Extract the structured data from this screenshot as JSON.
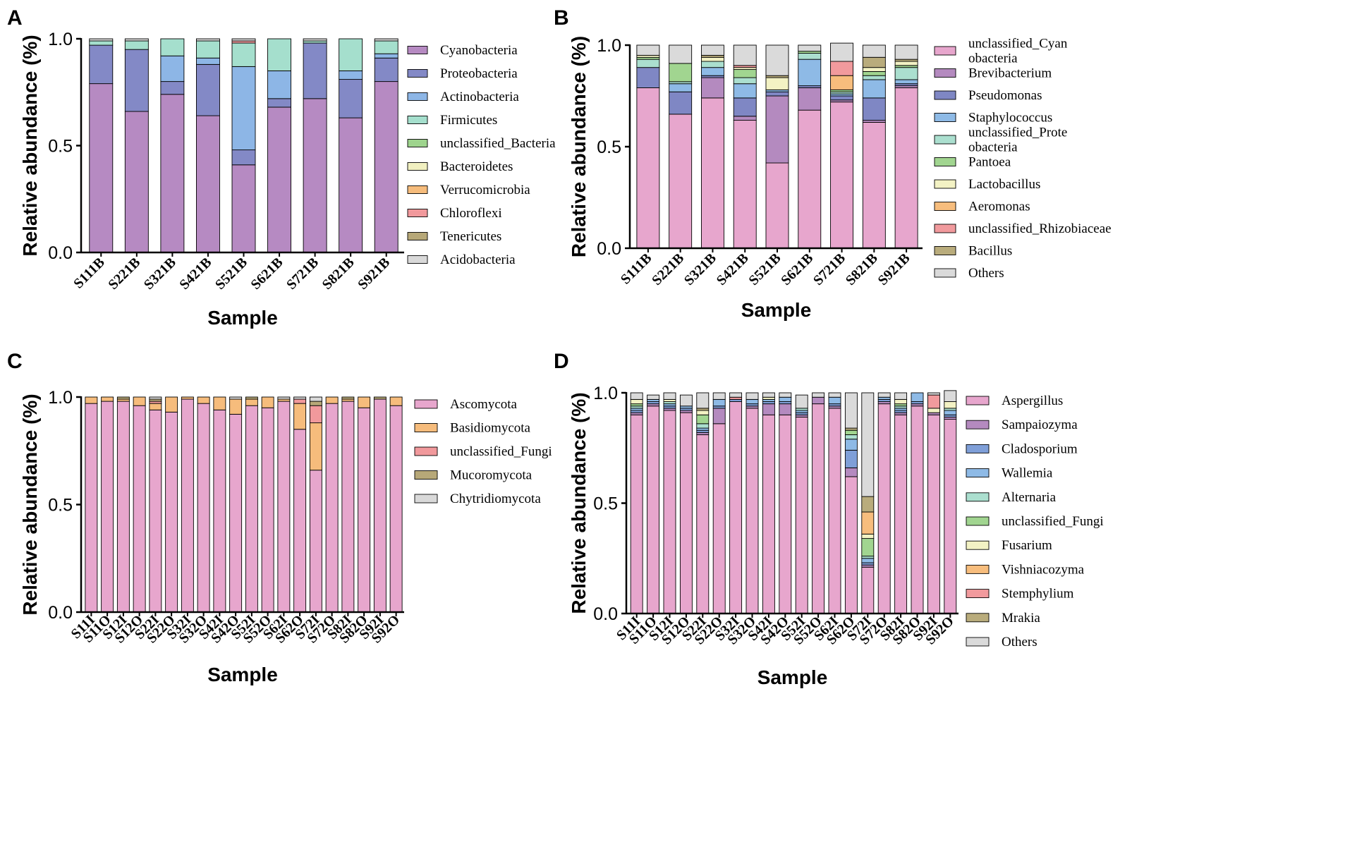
{
  "chart_data": [
    {
      "panel": "A",
      "type": "bar",
      "stacked": true,
      "xlabel": "Sample",
      "ylabel": "Relative abundance (%)",
      "ylim": [
        0,
        1
      ],
      "yticks": [
        "0.0",
        "0.5",
        "1.0"
      ],
      "categories": [
        "S111B",
        "S221B",
        "S321B",
        "S421B",
        "S521B",
        "S621B",
        "S721B",
        "S821B",
        "S921B"
      ],
      "series": [
        {
          "name": "Cyanobacteria",
          "color": "#b68ac2",
          "values": [
            0.79,
            0.66,
            0.74,
            0.64,
            0.41,
            0.68,
            0.72,
            0.63,
            0.8
          ]
        },
        {
          "name": "Proteobacteria",
          "color": "#8389c6",
          "values": [
            0.18,
            0.29,
            0.06,
            0.24,
            0.07,
            0.04,
            0.26,
            0.18,
            0.11
          ]
        },
        {
          "name": "Actinobacteria",
          "color": "#8db6e6",
          "values": [
            0.0,
            0.0,
            0.12,
            0.03,
            0.39,
            0.13,
            0.0,
            0.04,
            0.02
          ]
        },
        {
          "name": "Firmicutes",
          "color": "#a5dfcd",
          "values": [
            0.02,
            0.04,
            0.08,
            0.08,
            0.11,
            0.15,
            0.01,
            0.15,
            0.06
          ]
        },
        {
          "name": "unclassified_Bacteria",
          "color": "#9ed48d",
          "values": [
            0.0,
            0.0,
            0.0,
            0.0,
            0.0,
            0.0,
            0.0,
            0.0,
            0.0
          ]
        },
        {
          "name": "Bacteroidetes",
          "color": "#f1f0c0",
          "values": [
            0.0,
            0.0,
            0.0,
            0.0,
            0.0,
            0.0,
            0.0,
            0.0,
            0.0
          ]
        },
        {
          "name": "Verrucomicrobia",
          "color": "#f6bc7c",
          "values": [
            0.0,
            0.0,
            0.0,
            0.0,
            0.0,
            0.0,
            0.0,
            0.0,
            0.0
          ]
        },
        {
          "name": "Chloroflexi",
          "color": "#f1999c",
          "values": [
            0.0,
            0.0,
            0.0,
            0.0,
            0.01,
            0.0,
            0.0,
            0.0,
            0.0
          ]
        },
        {
          "name": "Tenericutes",
          "color": "#b7a878",
          "values": [
            0.0,
            0.0,
            0.0,
            0.0,
            0.0,
            0.0,
            0.0,
            0.0,
            0.0
          ]
        },
        {
          "name": "Acidobacteria",
          "color": "#d9d9d9",
          "values": [
            0.01,
            0.01,
            0.0,
            0.01,
            0.01,
            0.0,
            0.01,
            0.0,
            0.01
          ]
        }
      ]
    },
    {
      "panel": "B",
      "type": "bar",
      "stacked": true,
      "xlabel": "Sample",
      "ylabel": "Relative abundance (%)",
      "ylim": [
        0,
        1
      ],
      "yticks": [
        "0.0",
        "0.5",
        "1.0"
      ],
      "categories": [
        "S111B",
        "S221B",
        "S321B",
        "S421B",
        "S521B",
        "S621B",
        "S721B",
        "S821B",
        "S921B"
      ],
      "series": [
        {
          "name": "unclassified_Cyan obacteria",
          "legend_lines": [
            "unclassified_Cyan",
            "obacteria"
          ],
          "color": "#e7a6cd",
          "values": [
            0.79,
            0.66,
            0.74,
            0.63,
            0.42,
            0.68,
            0.72,
            0.62,
            0.79
          ]
        },
        {
          "name": "Brevibacterium",
          "color": "#b48abf",
          "values": [
            0.0,
            0.0,
            0.1,
            0.02,
            0.33,
            0.11,
            0.01,
            0.01,
            0.01
          ]
        },
        {
          "name": "Pseudomonas",
          "color": "#7f87c4",
          "values": [
            0.1,
            0.11,
            0.01,
            0.09,
            0.02,
            0.01,
            0.02,
            0.11,
            0.01
          ]
        },
        {
          "name": "Staphylococcus",
          "color": "#8ebae6",
          "values": [
            0.0,
            0.04,
            0.04,
            0.07,
            0.01,
            0.13,
            0.01,
            0.09,
            0.02
          ]
        },
        {
          "name": "unclassified_Prote obacteria",
          "legend_lines": [
            "unclassified_Prote",
            "obacteria"
          ],
          "color": "#abdfcf",
          "values": [
            0.04,
            0.01,
            0.03,
            0.03,
            0.0,
            0.03,
            0.01,
            0.02,
            0.06
          ]
        },
        {
          "name": "Pantoea",
          "color": "#a1d590",
          "values": [
            0.01,
            0.09,
            0.0,
            0.04,
            0.0,
            0.01,
            0.01,
            0.02,
            0.01
          ]
        },
        {
          "name": "Lactobacillus",
          "color": "#f3f2c4",
          "values": [
            0.01,
            0.0,
            0.02,
            0.01,
            0.06,
            0.0,
            0.0,
            0.02,
            0.02
          ]
        },
        {
          "name": "Aeromonas",
          "color": "#f7bd7d",
          "values": [
            0.0,
            0.0,
            0.0,
            0.0,
            0.0,
            0.0,
            0.07,
            0.0,
            0.0
          ]
        },
        {
          "name": "unclassified_Rhizobiaceae",
          "color": "#f19a9d",
          "values": [
            0.0,
            0.0,
            0.0,
            0.01,
            0.0,
            0.0,
            0.07,
            0.0,
            0.0
          ]
        },
        {
          "name": "Bacillus",
          "color": "#b9ac7c",
          "values": [
            0.0,
            0.0,
            0.01,
            0.0,
            0.01,
            0.0,
            0.0,
            0.05,
            0.01
          ]
        },
        {
          "name": "Others",
          "color": "#dadada",
          "values": [
            0.05,
            0.09,
            0.05,
            0.1,
            0.15,
            0.03,
            0.09,
            0.06,
            0.07
          ]
        }
      ]
    },
    {
      "panel": "C",
      "type": "bar",
      "stacked": true,
      "xlabel": "Sample",
      "ylabel": "Relative abundance (%)",
      "ylim": [
        0,
        1
      ],
      "yticks": [
        "0.0",
        "0.5",
        "1.0"
      ],
      "categories": [
        "S11I",
        "S11O",
        "S12I",
        "S12O",
        "S22I",
        "S22O",
        "S32I",
        "S32O",
        "S42I",
        "S42O",
        "S52I",
        "S52O",
        "S62I",
        "S62O",
        "S72I",
        "S72O",
        "S82I",
        "S82O",
        "S92I",
        "S92O"
      ],
      "series": [
        {
          "name": "Ascomycota",
          "color": "#e7a6cd",
          "values": [
            0.97,
            0.98,
            0.98,
            0.96,
            0.94,
            0.93,
            0.99,
            0.97,
            0.94,
            0.92,
            0.96,
            0.95,
            0.98,
            0.85,
            0.66,
            0.97,
            0.98,
            0.95,
            0.99,
            0.96
          ]
        },
        {
          "name": "Basidiomycota",
          "color": "#f6bc7c",
          "values": [
            0.03,
            0.02,
            0.01,
            0.04,
            0.03,
            0.07,
            0.01,
            0.03,
            0.06,
            0.07,
            0.03,
            0.05,
            0.01,
            0.12,
            0.22,
            0.03,
            0.01,
            0.05,
            0.0,
            0.04
          ]
        },
        {
          "name": "unclassified_Fungi",
          "color": "#f1999c",
          "values": [
            0.0,
            0.0,
            0.0,
            0.0,
            0.01,
            0.0,
            0.0,
            0.0,
            0.0,
            0.0,
            0.0,
            0.0,
            0.0,
            0.02,
            0.08,
            0.0,
            0.0,
            0.0,
            0.0,
            0.0
          ]
        },
        {
          "name": "Mucoromycota",
          "color": "#b7a878",
          "values": [
            0.0,
            0.0,
            0.01,
            0.0,
            0.01,
            0.0,
            0.0,
            0.0,
            0.0,
            0.0,
            0.01,
            0.0,
            0.0,
            0.0,
            0.02,
            0.0,
            0.01,
            0.0,
            0.01,
            0.0
          ]
        },
        {
          "name": "Chytridiomycota",
          "color": "#d9d9d9",
          "values": [
            0.0,
            0.0,
            0.0,
            0.0,
            0.01,
            0.0,
            0.0,
            0.0,
            0.0,
            0.01,
            0.0,
            0.0,
            0.01,
            0.01,
            0.02,
            0.0,
            0.0,
            0.0,
            0.0,
            0.0
          ]
        }
      ]
    },
    {
      "panel": "D",
      "type": "bar",
      "stacked": true,
      "xlabel": "Sample",
      "ylabel": "Relative abundance (%)",
      "ylim": [
        0,
        1
      ],
      "yticks": [
        "0.0",
        "0.5",
        "1.0"
      ],
      "categories": [
        "S11I",
        "S11O",
        "S12I",
        "S12O",
        "S22I",
        "S22O",
        "S32I",
        "S32O",
        "S42I",
        "S42O",
        "S52I",
        "S52O",
        "S62I",
        "S62O",
        "S72I",
        "S72O",
        "S82I",
        "S82O",
        "S92I",
        "S92O"
      ],
      "series": [
        {
          "name": "Aspergillus",
          "color": "#e7a6cd",
          "values": [
            0.9,
            0.94,
            0.92,
            0.91,
            0.81,
            0.86,
            0.96,
            0.93,
            0.9,
            0.9,
            0.89,
            0.95,
            0.93,
            0.62,
            0.21,
            0.95,
            0.9,
            0.94,
            0.9,
            0.88
          ]
        },
        {
          "name": "Sampaiozyma",
          "color": "#b48abf",
          "values": [
            0.01,
            0.01,
            0.01,
            0.01,
            0.01,
            0.07,
            0.0,
            0.01,
            0.05,
            0.05,
            0.01,
            0.03,
            0.01,
            0.04,
            0.01,
            0.01,
            0.01,
            0.01,
            0.01,
            0.01
          ]
        },
        {
          "name": "Cladosporium",
          "color": "#7f9fd8",
          "values": [
            0.01,
            0.01,
            0.01,
            0.01,
            0.01,
            0.01,
            0.01,
            0.01,
            0.01,
            0.01,
            0.01,
            0.0,
            0.01,
            0.08,
            0.01,
            0.01,
            0.01,
            0.01,
            0.0,
            0.01
          ]
        },
        {
          "name": "Wallemia",
          "color": "#8ebae6",
          "values": [
            0.01,
            0.01,
            0.01,
            0.01,
            0.01,
            0.03,
            0.0,
            0.02,
            0.01,
            0.02,
            0.01,
            0.0,
            0.03,
            0.05,
            0.02,
            0.01,
            0.01,
            0.04,
            0.0,
            0.02
          ]
        },
        {
          "name": "Alternaria",
          "color": "#abdfcf",
          "values": [
            0.01,
            0.0,
            0.01,
            0.0,
            0.02,
            0.0,
            0.0,
            0.0,
            0.0,
            0.0,
            0.01,
            0.0,
            0.0,
            0.02,
            0.01,
            0.0,
            0.01,
            0.0,
            0.0,
            0.01
          ]
        },
        {
          "name": "unclassified_Fungi",
          "color": "#a1d590",
          "values": [
            0.01,
            0.0,
            0.0,
            0.0,
            0.04,
            0.0,
            0.0,
            0.0,
            0.0,
            0.0,
            0.0,
            0.0,
            0.0,
            0.02,
            0.08,
            0.0,
            0.01,
            0.0,
            0.0,
            0.0
          ]
        },
        {
          "name": "Fusarium",
          "color": "#f3f2c4",
          "values": [
            0.02,
            0.0,
            0.01,
            0.0,
            0.02,
            0.0,
            0.0,
            0.0,
            0.01,
            0.0,
            0.0,
            0.0,
            0.0,
            0.0,
            0.02,
            0.0,
            0.02,
            0.0,
            0.02,
            0.03
          ]
        },
        {
          "name": "Vishniacozyma",
          "color": "#f7bd7d",
          "values": [
            0.0,
            0.0,
            0.0,
            0.0,
            0.0,
            0.0,
            0.0,
            0.0,
            0.0,
            0.0,
            0.0,
            0.0,
            0.0,
            0.0,
            0.1,
            0.0,
            0.0,
            0.0,
            0.0,
            0.0
          ]
        },
        {
          "name": "Stemphylium",
          "color": "#f19a9d",
          "values": [
            0.0,
            0.0,
            0.0,
            0.0,
            0.0,
            0.0,
            0.01,
            0.0,
            0.0,
            0.0,
            0.0,
            0.0,
            0.0,
            0.0,
            0.0,
            0.0,
            0.0,
            0.0,
            0.06,
            0.0
          ]
        },
        {
          "name": "Mrakia",
          "color": "#b9ac7c",
          "values": [
            0.0,
            0.0,
            0.0,
            0.0,
            0.01,
            0.0,
            0.0,
            0.0,
            0.0,
            0.0,
            0.0,
            0.0,
            0.0,
            0.01,
            0.07,
            0.0,
            0.0,
            0.0,
            0.0,
            0.0
          ]
        },
        {
          "name": "Others",
          "color": "#dadada",
          "values": [
            0.03,
            0.02,
            0.03,
            0.05,
            0.07,
            0.03,
            0.02,
            0.03,
            0.02,
            0.02,
            0.06,
            0.02,
            0.02,
            0.16,
            0.47,
            0.02,
            0.03,
            0.0,
            0.01,
            0.05
          ]
        }
      ]
    }
  ]
}
